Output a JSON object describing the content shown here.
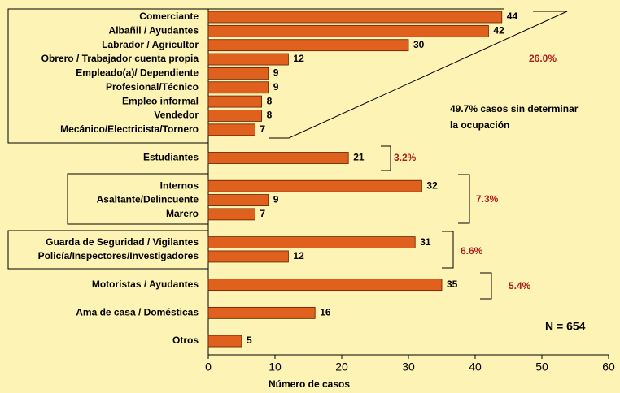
{
  "chart_data": {
    "type": "bar",
    "orientation": "horizontal",
    "categories": [
      "Comerciante",
      "Albañil / Ayudantes",
      "Labrador / Agricultor",
      "Obrero / Trabajador cuenta propia",
      "Empleado(a)/ Dependiente",
      "Profesional/Técnico",
      "Empleo informal",
      "Vendedor",
      "Mecánico/Electricista/Tornero",
      "Estudiantes",
      "Internos",
      "Asaltante/Delincuente",
      "Marero",
      "Guarda de Seguridad / Vigilantes",
      "Policía/Inspectores/Investigadores",
      "Motoristas / Ayudantes",
      "Ama de casa / Domésticas",
      "Otros"
    ],
    "values": [
      44,
      42,
      30,
      12,
      9,
      9,
      8,
      8,
      7,
      21,
      32,
      9,
      7,
      31,
      12,
      35,
      16,
      5
    ],
    "color": "#e0601e",
    "xlim": [
      0,
      60
    ],
    "xticks": [
      0,
      10,
      20,
      30,
      40,
      50,
      60
    ],
    "xlabel": "Número de casos",
    "annotations": [
      "26.0%",
      "49.7% casos sin determinar",
      "la ocupación",
      "3.2%",
      "7.3%",
      "6.6%",
      "5.4%",
      "N = 654"
    ]
  }
}
